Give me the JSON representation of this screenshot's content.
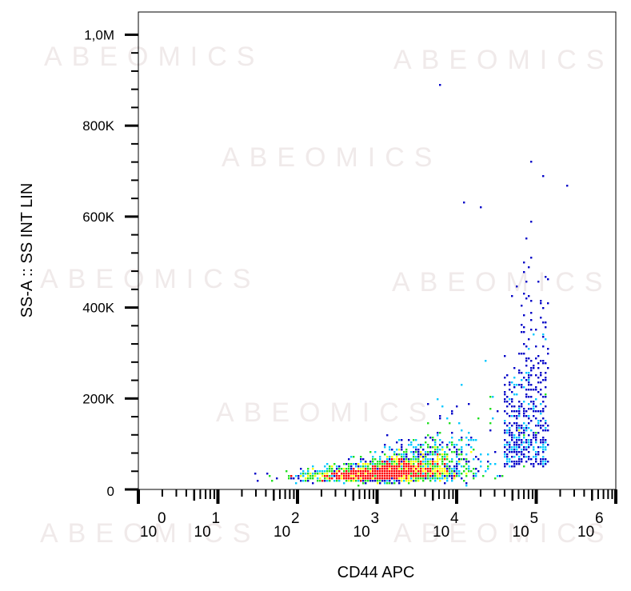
{
  "watermark": "ABEOMICS",
  "chart_data": {
    "type": "scatter",
    "subtype": "flow-cytometry-density-dot-plot",
    "xlabel": "CD44 APC",
    "ylabel": "SS-A :: SS INT LIN",
    "xscale": "log",
    "xlim_log10": [
      0,
      6
    ],
    "x_ticks": [
      {
        "base": "10",
        "exp": "0"
      },
      {
        "base": "10",
        "exp": "1"
      },
      {
        "base": "10",
        "exp": "2"
      },
      {
        "base": "10",
        "exp": "3"
      },
      {
        "base": "10",
        "exp": "4"
      },
      {
        "base": "10",
        "exp": "5"
      },
      {
        "base": "10",
        "exp": "6"
      }
    ],
    "ylim": [
      0,
      1050000
    ],
    "y_ticks": [
      {
        "v": 0,
        "label": "0"
      },
      {
        "v": 200000,
        "label": "200K"
      },
      {
        "v": 400000,
        "label": "400K"
      },
      {
        "v": 600000,
        "label": "600K"
      },
      {
        "v": 800000,
        "label": "800K"
      },
      {
        "v": 1000000,
        "label": "1,0M"
      }
    ],
    "population": {
      "events": 6000,
      "center_log10_x": 3.2,
      "spread_log10_x": 0.5,
      "baseline_y": 25000,
      "densest_point": {
        "log10_x": 3.0,
        "y": 30000
      }
    },
    "outliers": [
      {
        "log10_x": 3.8,
        "y": 890000
      },
      {
        "log10_x": 4.95,
        "y": 720000
      },
      {
        "log10_x": 5.4,
        "y": 665000
      },
      {
        "log10_x": 5.1,
        "y": 690000
      },
      {
        "log10_x": 4.1,
        "y": 630000
      },
      {
        "log10_x": 4.3,
        "y": 620000
      }
    ],
    "color_scale": [
      "#0000c8",
      "#00c8ff",
      "#20e020",
      "#ffff00",
      "#ff0000"
    ]
  }
}
